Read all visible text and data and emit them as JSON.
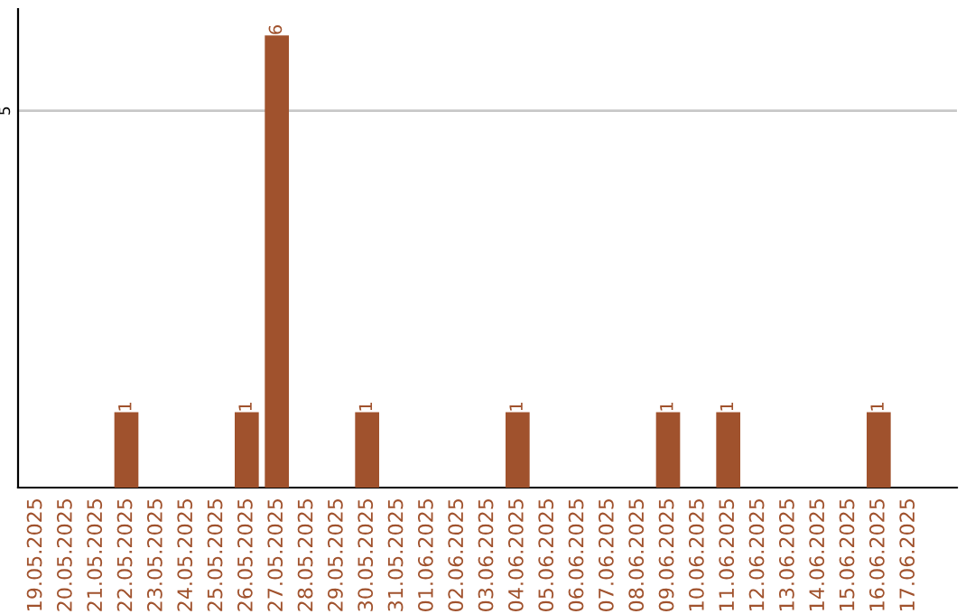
{
  "chart_data": {
    "type": "bar",
    "categories": [
      "19.05.2025",
      "20.05.2025",
      "21.05.2025",
      "22.05.2025",
      "23.05.2025",
      "24.05.2025",
      "25.05.2025",
      "26.05.2025",
      "27.05.2025",
      "28.05.2025",
      "29.05.2025",
      "30.05.2025",
      "31.05.2025",
      "01.06.2025",
      "02.06.2025",
      "03.06.2025",
      "04.06.2025",
      "05.06.2025",
      "06.06.2025",
      "07.06.2025",
      "08.06.2025",
      "09.06.2025",
      "10.06.2025",
      "11.06.2025",
      "12.06.2025",
      "13.06.2025",
      "14.06.2025",
      "15.06.2025",
      "16.06.2025",
      "17.06.2025"
    ],
    "values": [
      0,
      0,
      0,
      1,
      0,
      0,
      0,
      1,
      6,
      0,
      0,
      1,
      0,
      0,
      0,
      0,
      1,
      0,
      0,
      0,
      0,
      1,
      0,
      1,
      0,
      0,
      0,
      0,
      1,
      0
    ],
    "value_labels": [
      null,
      null,
      null,
      "1",
      null,
      null,
      null,
      "1",
      "6",
      null,
      null,
      "1",
      null,
      null,
      null,
      null,
      "1",
      null,
      null,
      null,
      null,
      "1",
      null,
      "1",
      null,
      null,
      null,
      null,
      "1",
      null
    ],
    "color": "#a0522d",
    "ylim": [
      0,
      6.35
    ],
    "yticks": [
      5
    ],
    "grid": "y",
    "legend": false
  }
}
